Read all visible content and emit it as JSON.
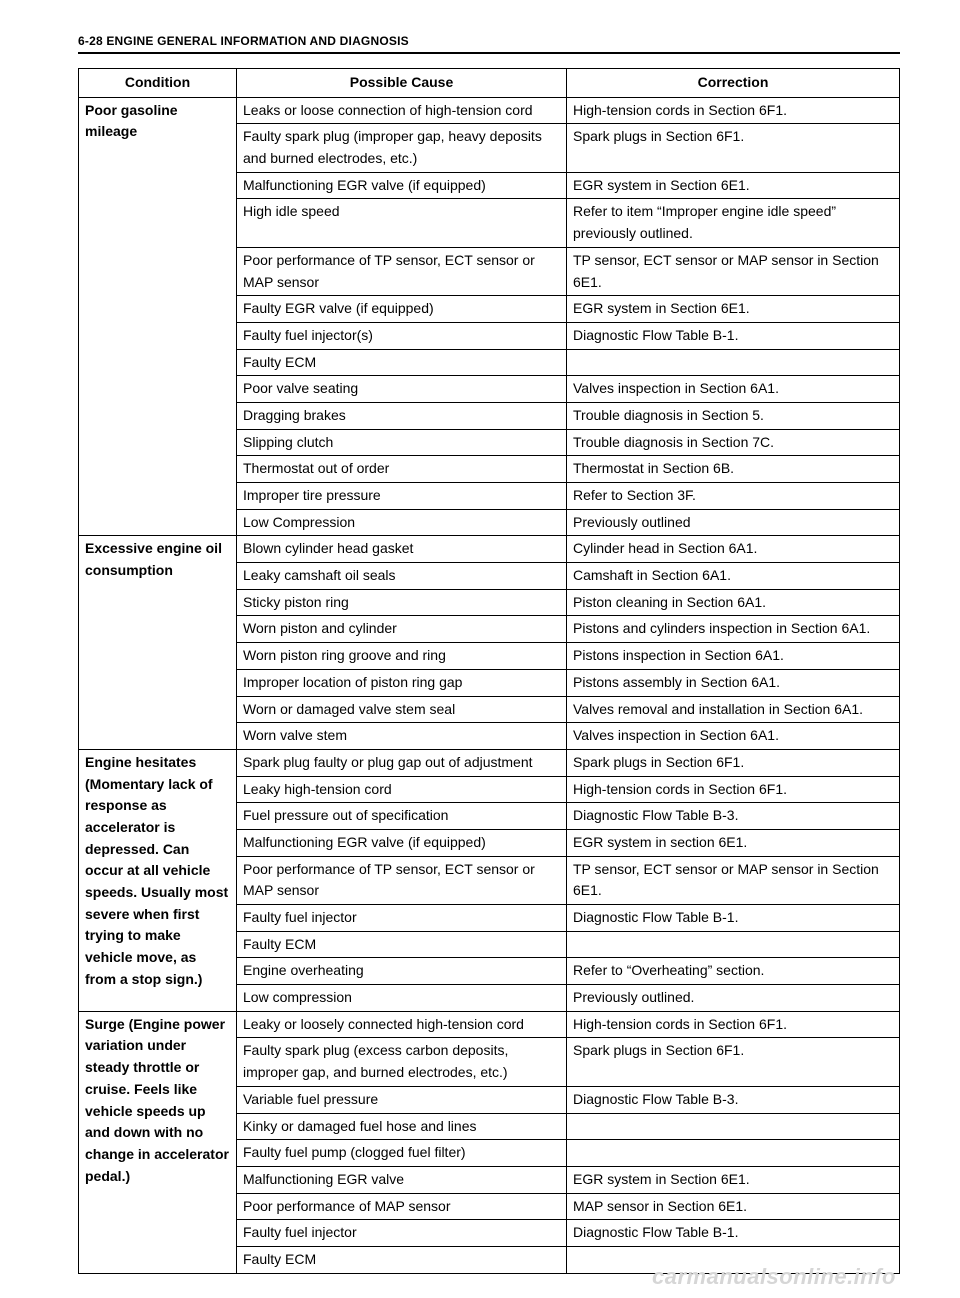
{
  "page_header": "6-28 ENGINE GENERAL INFORMATION AND DIAGNOSIS",
  "watermark": "carmanualsonline.info",
  "columns": {
    "condition": "Condition",
    "cause": "Possible Cause",
    "correction": "Correction"
  },
  "groups": [
    {
      "condition": "Poor gasoline mileage",
      "rows": [
        {
          "cause": "Leaks or loose connection of high-tension cord",
          "correction": "High-tension cords in Section 6F1."
        },
        {
          "cause": "Faulty spark plug (improper gap, heavy deposits and burned electrodes, etc.)",
          "correction": "Spark plugs in Section 6F1."
        },
        {
          "cause": "Malfunctioning EGR valve (if equipped)",
          "correction": "EGR system in Section 6E1."
        },
        {
          "cause": "High idle speed",
          "correction": "Refer to item “Improper engine idle speed” previously outlined."
        },
        {
          "cause": "Poor performance of TP sensor, ECT sensor or MAP sensor",
          "correction": "TP sensor, ECT sensor or MAP sensor in Section 6E1."
        },
        {
          "cause": "Faulty EGR valve (if equipped)",
          "correction": "EGR system in Section 6E1."
        },
        {
          "cause": "Faulty fuel injector(s)",
          "correction": "Diagnostic Flow Table B-1."
        },
        {
          "cause": "Faulty ECM",
          "correction": ""
        },
        {
          "cause": "Poor valve seating",
          "correction": "Valves inspection in Section 6A1."
        },
        {
          "cause": "Dragging brakes",
          "correction": "Trouble diagnosis in Section 5."
        },
        {
          "cause": "Slipping clutch",
          "correction": "Trouble diagnosis in Section 7C."
        },
        {
          "cause": "Thermostat out of order",
          "correction": "Thermostat in Section 6B."
        },
        {
          "cause": "Improper tire pressure",
          "correction": "Refer to Section 3F."
        },
        {
          "cause": "Low Compression",
          "correction": "Previously outlined"
        }
      ]
    },
    {
      "condition": "Excessive engine oil consumption",
      "rows": [
        {
          "cause": "Blown cylinder head gasket",
          "correction": "Cylinder head in Section 6A1."
        },
        {
          "cause": "Leaky camshaft oil seals",
          "correction": "Camshaft in Section 6A1."
        },
        {
          "cause": "Sticky piston ring",
          "correction": "Piston cleaning in Section 6A1."
        },
        {
          "cause": "Worn piston and cylinder",
          "correction": "Pistons and cylinders inspection in Section 6A1."
        },
        {
          "cause": "Worn piston ring groove and ring",
          "correction": "Pistons inspection in Section 6A1."
        },
        {
          "cause": "Improper location of piston ring gap",
          "correction": "Pistons assembly in Section 6A1."
        },
        {
          "cause": "Worn or damaged valve stem seal",
          "correction": "Valves removal and installation in Section 6A1."
        },
        {
          "cause": "Worn valve stem",
          "correction": "Valves inspection in Section 6A1."
        }
      ]
    },
    {
      "condition": "Engine hesitates (Momentary lack of response as accelerator is depressed. Can occur at all vehicle speeds. Usually most severe when first trying to make vehicle move, as from a stop sign.)",
      "rows": [
        {
          "cause": "Spark plug faulty or plug gap out of adjustment",
          "correction": "Spark plugs in Section 6F1."
        },
        {
          "cause": "Leaky high-tension cord",
          "correction": "High-tension cords in Section 6F1."
        },
        {
          "cause": "Fuel pressure out of specification",
          "correction": "Diagnostic Flow Table B-3."
        },
        {
          "cause": "Malfunctioning EGR valve (if equipped)",
          "correction": "EGR system in section 6E1."
        },
        {
          "cause": "Poor performance of TP sensor, ECT sensor or MAP sensor",
          "correction": "TP sensor, ECT sensor or MAP sensor in Section 6E1."
        },
        {
          "cause": "Faulty fuel injector",
          "correction": "Diagnostic Flow Table B-1."
        },
        {
          "cause": "Faulty ECM",
          "correction": ""
        },
        {
          "cause": "Engine overheating",
          "correction": "Refer to “Overheating” section."
        },
        {
          "cause": "Low compression",
          "correction": "Previously outlined."
        }
      ]
    },
    {
      "condition": "Surge (Engine power variation under steady throttle or cruise. Feels like vehicle speeds up and down with no change in accelerator pedal.)",
      "rows": [
        {
          "cause": "Leaky or loosely connected high-tension cord",
          "correction": "High-tension cords in Section 6F1."
        },
        {
          "cause": "Faulty spark plug (excess carbon deposits, improper gap, and burned electrodes, etc.)",
          "correction": "Spark plugs in Section 6F1."
        },
        {
          "cause": "Variable fuel pressure",
          "correction": "Diagnostic Flow Table B-3."
        },
        {
          "cause": "Kinky or damaged fuel hose and lines",
          "correction": ""
        },
        {
          "cause": "Faulty fuel pump (clogged fuel filter)",
          "correction": ""
        },
        {
          "cause": "Malfunctioning EGR valve",
          "correction": "EGR system in Section 6E1."
        },
        {
          "cause": "Poor performance of MAP sensor",
          "correction": "MAP sensor in Section 6E1."
        },
        {
          "cause": "Faulty fuel injector",
          "correction": "Diagnostic Flow Table B-1."
        },
        {
          "cause": "Faulty ECM",
          "correction": ""
        }
      ]
    }
  ]
}
